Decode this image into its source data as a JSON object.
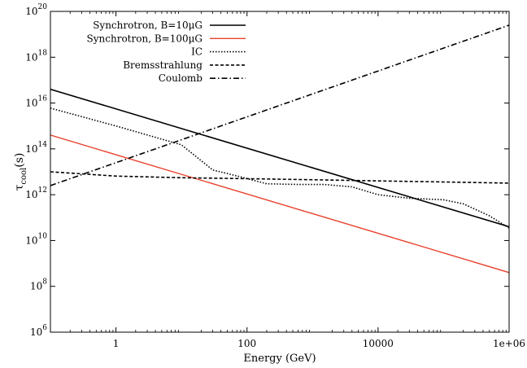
{
  "chart_data": {
    "type": "line",
    "x_scale": "log",
    "y_scale": "log",
    "xlabel": "Energy (GeV)",
    "ylabel": "τ",
    "ylabel_sub": "cool",
    "ylabel_suffix": "(s)",
    "xlim": [
      0.1,
      1000000
    ],
    "ylim": [
      1000000,
      100000000000000000000
    ],
    "x_ticks": [
      {
        "value": 1,
        "label": "1"
      },
      {
        "value": 100,
        "label": "100"
      },
      {
        "value": 10000,
        "label": "10000"
      },
      {
        "value": 1000000,
        "label": "1e+06"
      }
    ],
    "y_ticks": [
      {
        "value": 1000000.0,
        "base": "10",
        "exp": "6"
      },
      {
        "value": 100000000.0,
        "base": "10",
        "exp": "8"
      },
      {
        "value": 10000000000.0,
        "base": "10",
        "exp": "10"
      },
      {
        "value": 1000000000000.0,
        "base": "10",
        "exp": "12"
      },
      {
        "value": 100000000000000.0,
        "base": "10",
        "exp": "14"
      },
      {
        "value": 1e+16,
        "base": "10",
        "exp": "16"
      },
      {
        "value": 1e+18,
        "base": "10",
        "exp": "18"
      },
      {
        "value": 1e+20,
        "base": "10",
        "exp": "20"
      }
    ],
    "legend_position": "top-left",
    "series": [
      {
        "name": "Synchrotron, B=10μG",
        "color": "#000000",
        "dash": "solid",
        "points": [
          [
            0.1,
            4e+16
          ],
          [
            1000000,
            40000000000.0
          ]
        ]
      },
      {
        "name": "Synchrotron, B=100μG",
        "color": "#e8432e",
        "dash": "solid",
        "points": [
          [
            0.1,
            400000000000000.0
          ],
          [
            1000000,
            400000000.0
          ]
        ]
      },
      {
        "name": "IC",
        "color": "#000000",
        "dash": "dotted",
        "points": [
          [
            0.1,
            6000000000000000.0
          ],
          [
            1,
            1000000000000000.0
          ],
          [
            10,
            150000000000000.0
          ],
          [
            30,
            12000000000000.0
          ],
          [
            80,
            6000000000000.0
          ],
          [
            200,
            3000000000000.0
          ],
          [
            600,
            2800000000000.0
          ],
          [
            1500,
            2800000000000.0
          ],
          [
            4000,
            2200000000000.0
          ],
          [
            10000,
            1000000000000.0
          ],
          [
            30000,
            700000000000.0
          ],
          [
            100000,
            600000000000.0
          ],
          [
            200000,
            400000000000.0
          ],
          [
            500000,
            120000000000.0
          ],
          [
            1000000,
            35000000000.0
          ]
        ]
      },
      {
        "name": "Bremsstrahlung",
        "color": "#000000",
        "dash": "dashed",
        "points": [
          [
            0.1,
            10000000000000.0
          ],
          [
            1,
            6500000000000.0
          ],
          [
            10,
            5500000000000.0
          ],
          [
            100,
            5000000000000.0
          ],
          [
            1000,
            4500000000000.0
          ],
          [
            10000,
            4000000000000.0
          ],
          [
            100000,
            3600000000000.0
          ],
          [
            1000000,
            3200000000000.0
          ]
        ]
      },
      {
        "name": "Coulomb",
        "color": "#000000",
        "dash": "dashdot",
        "points": [
          [
            0.1,
            2500000000000.0
          ],
          [
            1000000,
            2.5e+19
          ]
        ]
      }
    ]
  }
}
